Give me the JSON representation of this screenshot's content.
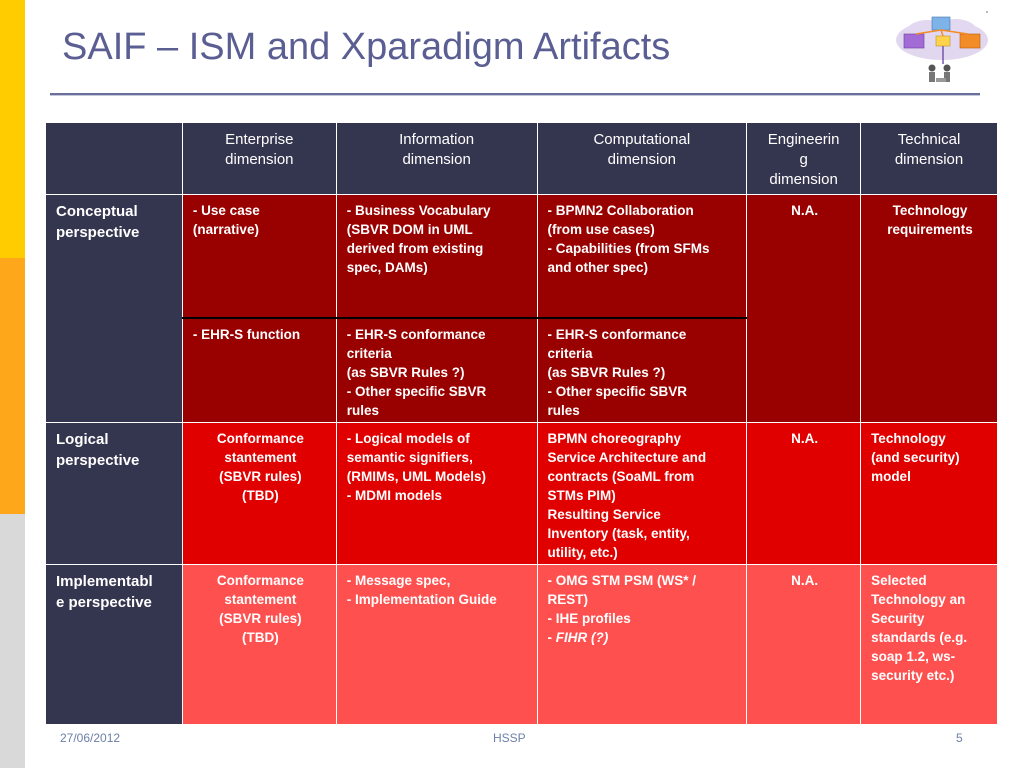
{
  "slide": {
    "title": "SAIF – ISM and Xparadigm Artifacts",
    "sidebar_colors": [
      "#FFCC00",
      "#FFA71A",
      "#D9D9D9"
    ],
    "cell_colors": {
      "header": "#343650",
      "conceptual": "#990000",
      "logical": "#E00000",
      "implementable": "#FF5050",
      "title": "#5A5E92"
    }
  },
  "table": {
    "headers": [
      "",
      "Enterprise dimension",
      "Information dimension",
      "Computational dimension",
      "Engineerin g dimension",
      "Technical dimension"
    ],
    "header_lines": {
      "enterprise": [
        "Enterprise",
        "dimension"
      ],
      "information": [
        "Information",
        "dimension"
      ],
      "computational": [
        "Computational",
        "dimension"
      ],
      "engineering": [
        "Engineerin",
        "g",
        "dimension"
      ],
      "technical": [
        "Technical",
        "dimension"
      ]
    },
    "conceptual": {
      "label": [
        "Conceptual",
        "perspective"
      ],
      "enterprise_a": [
        "- Use case",
        "(narrative)"
      ],
      "information_a": [
        "- Business Vocabulary",
        "(SBVR DOM in UML",
        "derived from existing",
        "spec, DAMs)"
      ],
      "computational_a": [
        "- BPMN2 Collaboration",
        "(from use cases)",
        "- Capabilities (from SFMs",
        "and other spec)"
      ],
      "engineering": "N.A.",
      "technical": [
        "Technology",
        "requirements"
      ],
      "enterprise_b": [
        "- EHR-S function"
      ],
      "information_b": [
        "- EHR-S conformance",
        "criteria",
        "(as SBVR Rules ?)",
        "- Other specific SBVR",
        "rules"
      ],
      "computational_b": [
        "- EHR-S conformance",
        "criteria",
        "(as SBVR Rules ?)",
        "- Other specific SBVR",
        "rules"
      ]
    },
    "logical": {
      "label": [
        "Logical",
        "perspective"
      ],
      "enterprise": [
        "Conformance",
        "stantement",
        "(SBVR rules)",
        "(TBD)"
      ],
      "information": [
        "- Logical models of",
        "semantic signifiers,",
        "(RMIMs, UML Models)",
        "- MDMI models"
      ],
      "computational": [
        "BPMN choreography",
        "Service Architecture and",
        "contracts (SoaML from",
        "STMs PIM)",
        "Resulting Service",
        "Inventory (task, entity,",
        "utility, etc.)"
      ],
      "engineering": "N.A.",
      "technical": [
        "Technology",
        "(and security)",
        "model"
      ]
    },
    "implementable": {
      "label": [
        "Implementabl",
        "e perspective"
      ],
      "enterprise": [
        "Conformance",
        "stantement",
        "(SBVR rules)",
        "(TBD)"
      ],
      "information": [
        "- Message spec,",
        "- Implementation Guide"
      ],
      "computational": [
        "- OMG STM PSM (WS* /",
        "REST)",
        "- IHE profiles"
      ],
      "computational_prefix": "- ",
      "computational_italic": "FIHR (?)",
      "engineering": "N.A.",
      "technical": [
        "Selected",
        "Technology an",
        "Security",
        "standards (e.g.",
        "soap 1.2, ws-",
        "security etc.)"
      ]
    }
  },
  "footer": {
    "date": "27/06/2012",
    "center": "HSSP",
    "page": "5"
  }
}
